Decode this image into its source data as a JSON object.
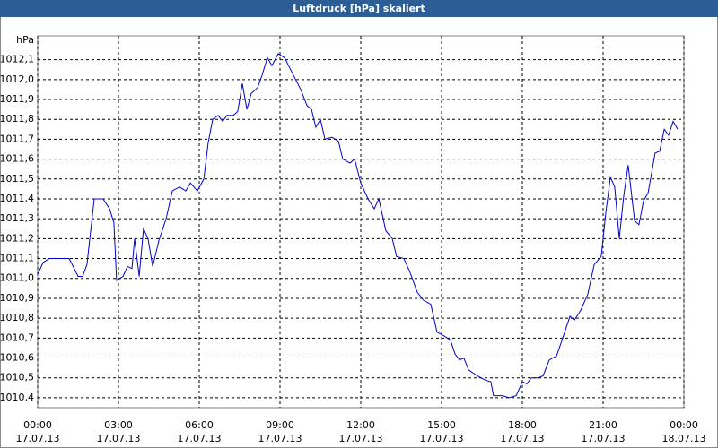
{
  "chart_data": {
    "type": "line",
    "title": "Luftdruck [hPa] skaliert",
    "y_label": "hPa",
    "x": [
      0,
      0.2,
      0.43,
      0.77,
      1.17,
      1.5,
      1.67,
      1.83,
      2.1,
      2.43,
      2.67,
      2.83,
      2.93,
      3.17,
      3.33,
      3.5,
      3.6,
      3.77,
      3.93,
      4.1,
      4.27,
      4.5,
      4.77,
      5.0,
      5.27,
      5.5,
      5.67,
      5.93,
      6.17,
      6.33,
      6.5,
      6.7,
      6.87,
      7.03,
      7.27,
      7.43,
      7.6,
      7.77,
      7.93,
      8.17,
      8.33,
      8.53,
      8.7,
      8.93,
      9.17,
      9.43,
      9.77,
      10.0,
      10.17,
      10.33,
      10.5,
      10.67,
      10.93,
      11.17,
      11.33,
      11.6,
      11.77,
      12.0,
      12.27,
      12.5,
      12.67,
      12.93,
      13.17,
      13.33,
      13.6,
      13.83,
      14.1,
      14.33,
      14.6,
      14.83,
      15.1,
      15.33,
      15.5,
      15.67,
      15.83,
      16.0,
      16.33,
      16.6,
      16.83,
      16.93,
      17.27,
      17.5,
      17.77,
      18.0,
      18.17,
      18.33,
      18.6,
      18.77,
      19.0,
      19.27,
      19.5,
      19.77,
      19.93,
      20.17,
      20.43,
      20.67,
      20.93,
      21.1,
      21.27,
      21.43,
      21.6,
      21.77,
      21.93,
      22.17,
      22.33,
      22.5,
      22.67,
      22.93,
      23.1,
      23.27,
      23.43,
      23.6,
      23.77
    ],
    "series": [
      {
        "name": "Luftdruck",
        "color": "#0000cc",
        "values": [
          1011.02,
          1011.08,
          1011.1,
          1011.1,
          1011.1,
          1011.01,
          1011.01,
          1011.07,
          1011.4,
          1011.4,
          1011.35,
          1011.28,
          1010.99,
          1011.01,
          1011.06,
          1011.05,
          1011.2,
          1011.01,
          1011.25,
          1011.2,
          1011.06,
          1011.19,
          1011.3,
          1011.44,
          1011.46,
          1011.44,
          1011.48,
          1011.44,
          1011.5,
          1011.68,
          1011.8,
          1011.82,
          1011.79,
          1011.82,
          1011.82,
          1011.84,
          1011.98,
          1011.85,
          1011.93,
          1011.96,
          1012.02,
          1012.11,
          1012.07,
          1012.13,
          1012.11,
          1012.04,
          1011.95,
          1011.87,
          1011.85,
          1011.76,
          1011.8,
          1011.7,
          1011.71,
          1011.69,
          1011.6,
          1011.58,
          1011.6,
          1011.48,
          1011.4,
          1011.35,
          1011.4,
          1011.24,
          1011.2,
          1011.11,
          1011.1,
          1011.03,
          1010.93,
          1010.89,
          1010.87,
          1010.73,
          1010.71,
          1010.69,
          1010.62,
          1010.59,
          1010.6,
          1010.54,
          1010.51,
          1010.49,
          1010.48,
          1010.41,
          1010.41,
          1010.4,
          1010.41,
          1010.48,
          1010.47,
          1010.5,
          1010.5,
          1010.51,
          1010.59,
          1010.61,
          1010.7,
          1010.81,
          1010.79,
          1010.84,
          1010.92,
          1011.07,
          1011.11,
          1011.33,
          1011.51,
          1011.46,
          1011.2,
          1011.42,
          1011.57,
          1011.29,
          1011.27,
          1011.39,
          1011.43,
          1011.63,
          1011.64,
          1011.75,
          1011.72,
          1011.79,
          1011.75
        ]
      }
    ],
    "xlim": [
      0,
      24
    ],
    "xticks": [
      {
        "value": 0,
        "label": "00:00"
      },
      {
        "value": 3,
        "label": "03:00"
      },
      {
        "value": 6,
        "label": "06:00"
      },
      {
        "value": 9,
        "label": "09:00"
      },
      {
        "value": 12,
        "label": "12:00"
      },
      {
        "value": 15,
        "label": "15:00"
      },
      {
        "value": 18,
        "label": "18:00"
      },
      {
        "value": 21,
        "label": "21:00"
      },
      {
        "value": 24,
        "label": "00:00"
      }
    ],
    "xtick_dates": [
      "17.07.13",
      "17.07.13",
      "17.07.13",
      "17.07.13",
      "17.07.13",
      "17.07.13",
      "17.07.13",
      "17.07.13",
      "18.07.13"
    ],
    "ylim": [
      1010.35,
      1012.22
    ],
    "yticks": [
      {
        "value": 1010.4,
        "label": "1010,4"
      },
      {
        "value": 1010.5,
        "label": "1010,5"
      },
      {
        "value": 1010.6,
        "label": "1010,6"
      },
      {
        "value": 1010.7,
        "label": "1010,7"
      },
      {
        "value": 1010.8,
        "label": "1010,8"
      },
      {
        "value": 1010.9,
        "label": "1010,9"
      },
      {
        "value": 1011.0,
        "label": "1011,0"
      },
      {
        "value": 1011.1,
        "label": "1011,1"
      },
      {
        "value": 1011.2,
        "label": "1011,2"
      },
      {
        "value": 1011.3,
        "label": "1011,3"
      },
      {
        "value": 1011.4,
        "label": "1011,4"
      },
      {
        "value": 1011.5,
        "label": "1011,5"
      },
      {
        "value": 1011.6,
        "label": "1011,6"
      },
      {
        "value": 1011.7,
        "label": "1011,7"
      },
      {
        "value": 1011.8,
        "label": "1011,8"
      },
      {
        "value": 1011.9,
        "label": "1011,9"
      },
      {
        "value": 1012.0,
        "label": "1012,0"
      },
      {
        "value": 1012.1,
        "label": "1012,1"
      }
    ],
    "grid": true
  }
}
